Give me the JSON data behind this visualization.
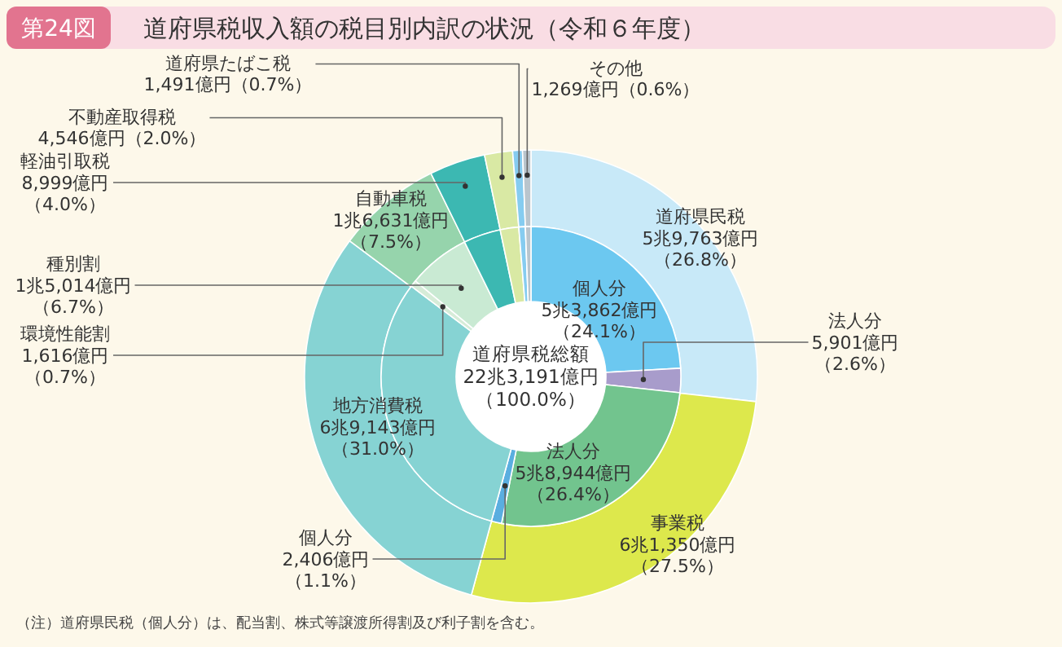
{
  "chart_data": [
    {
      "type": "donut",
      "title": "道府県税収入額の税目別内訳の状況（令和６年度）",
      "categories": [
        "道府県民税",
        "事業税",
        null,
        "自動車税",
        "軽油引取税",
        "不動産取得税",
        "道府県たばこ税",
        "その他"
      ],
      "values": [
        26.8,
        27.5,
        31.0,
        7.5,
        4.0,
        2.0,
        0.7,
        0.6
      ],
      "value_labels": [
        "5兆9,763億円（26.8%）",
        "6兆1,350億円（27.5%）",
        null,
        "1兆6,631億円（7.5%）",
        "8,999億円（4.0%）",
        "4,546億円（2.0%）",
        "1,491億円（0.7%）",
        "1,269億円（0.6%）"
      ],
      "colors": [
        "#c8e9f8",
        "#dde84c",
        "#86d3d3",
        "#96d4ac",
        "#3cb8b2",
        "#d9e9a4",
        "#86ccf0",
        "#b9c5cd"
      ],
      "annotations": [
        "第24図",
        "道府県税総額",
        "22兆3,191億円",
        "（100.0%）",
        "（注）道府県民税（個人分）は、配当割、株式等譲渡所得割及び利子割を含む。"
      ]
    },
    {
      "type": "donut",
      "categories": [
        "個人分",
        "法人分",
        "法人分",
        "個人分",
        "地方消費税",
        "環境性能割",
        "種別割",
        null,
        null,
        null,
        null
      ],
      "values": [
        24.1,
        2.6,
        26.4,
        1.1,
        31.0,
        0.7,
        6.7,
        4.0,
        2.0,
        0.7,
        0.6
      ],
      "value_labels": [
        "5兆3,862億円（24.1%）",
        "5,901億円（2.6%）",
        "5兆8,944億円（26.4%）",
        "2,406億円（1.1%）",
        "6兆9,143億円（31.0%）",
        "1,616億円（0.7%）",
        "1兆5,014億円（6.7%）",
        null,
        null,
        null,
        null
      ],
      "colors": [
        "#6cc8f0",
        "#a89ccb",
        "#72c48e",
        "#5aaee0",
        "#86d3d3",
        "#d6ecd8",
        "#c9ead3",
        "#3cb8b2",
        "#d9e9a4",
        "#86ccf0",
        "#b9c5cd"
      ]
    }
  ]
}
